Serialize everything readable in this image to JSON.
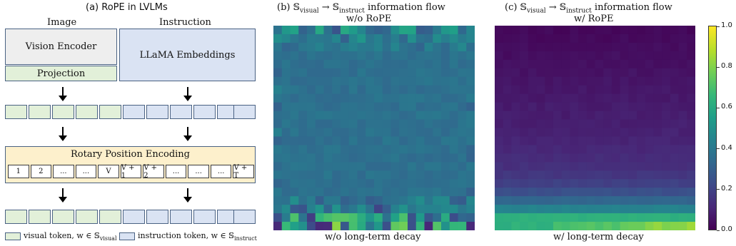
{
  "panel_a": {
    "title": "(a) RoPE in LVLMs",
    "image_label": "Image",
    "instruction_label": "Instruction",
    "vision_encoder": "Vision Encoder",
    "projection": "Projection",
    "llama_embeddings": "LLaMA Embeddings",
    "rope_title": "Rotary Position Encoding",
    "positions": [
      "1",
      "2",
      "...",
      "...",
      "V",
      "V + 1",
      "V + 2",
      "...",
      "...",
      "...",
      "V + T"
    ],
    "legend_visual_text": "visual token, w ∈ ",
    "legend_visual_set": "𝕊",
    "legend_visual_sub": "visual",
    "legend_instruct_text": "instruction token, w ∈ ",
    "legend_instruct_set": "𝕊",
    "legend_instruct_sub": "instruct",
    "colors": {
      "visual": "#e2f0d9",
      "instruct": "#dae3f3",
      "rope_bg": "#fdf0cc",
      "border": "#4a6283"
    }
  },
  "panel_b": {
    "title_prefix": "(b) 𝕊",
    "title_sub1": "visual",
    "title_arrow": " → 𝕊",
    "title_sub2": "instruct",
    "title_suffix": " information flow",
    "subtitle": "w/o RoPE",
    "caption": "w/o long-term decay"
  },
  "panel_c": {
    "title_prefix": "(c) 𝕊",
    "title_sub1": "visual",
    "title_arrow": " → 𝕊",
    "title_sub2": "instruct",
    "title_suffix": " information flow",
    "subtitle": "w/ RoPE",
    "caption": "w/ long-term decay"
  },
  "colorbar": {
    "ticks": [
      "0.0",
      "0.2",
      "0.4",
      "0.6",
      "0.8",
      "1.0"
    ],
    "tick_values": [
      0.0,
      0.2,
      0.4,
      0.6,
      0.8,
      1.0
    ],
    "colormap": "viridis",
    "range": [
      0,
      1
    ]
  },
  "chart_data": [
    {
      "type": "heatmap",
      "title": "(b) 𝕊visual → 𝕊instruct information flow",
      "subtitle": "w/o RoPE",
      "xlabel": "w/o long-term decay",
      "rows": 24,
      "cols": 24,
      "colormap": "viridis",
      "vmin": 0,
      "vmax": 1,
      "description_values": {
        "background": 0.38,
        "top_edge": 0.55,
        "bottom_edge": 0.65
      }
    },
    {
      "type": "heatmap",
      "title": "(c) 𝕊visual → 𝕊instruct information flow",
      "subtitle": "w/ RoPE",
      "xlabel": "w/ long-term decay",
      "rows": 24,
      "cols": 24,
      "colormap": "viridis",
      "vmin": 0,
      "vmax": 1,
      "description_values": {
        "top_row": 0.02,
        "bottom_row": 0.75
      }
    }
  ]
}
